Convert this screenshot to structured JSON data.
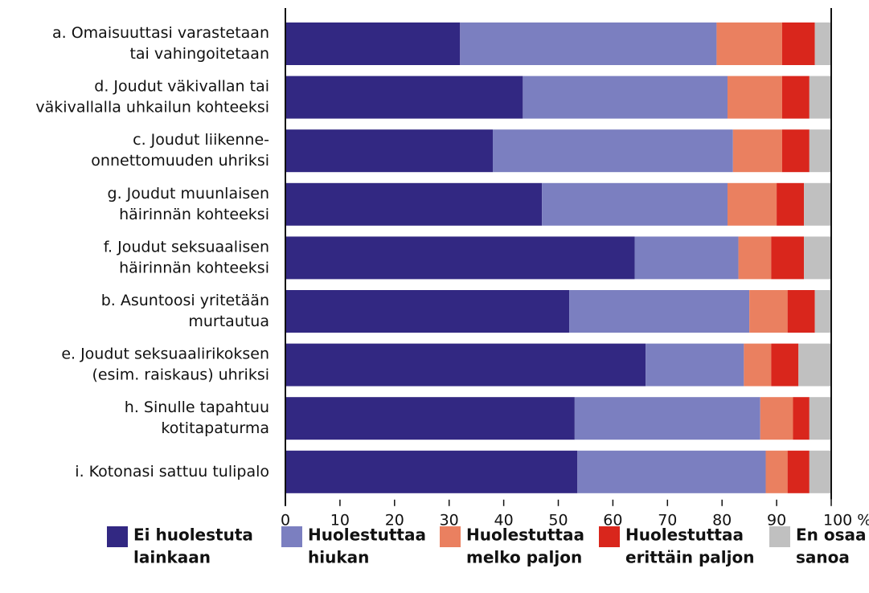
{
  "chart_data": {
    "type": "stacked-bar-horizontal",
    "categories": [
      [
        "a. Omaisuuttasi varastetaan",
        "tai vahingoitetaan"
      ],
      [
        "d. Joudut väkivallan tai",
        "väkivallalla uhkailun kohteeksi"
      ],
      [
        "c. Joudut liikenne-",
        "onnettomuuden uhriksi"
      ],
      [
        "g. Joudut muunlaisen",
        "häirinnän kohteeksi"
      ],
      [
        "f. Joudut seksuaalisen",
        "häirinnän kohteeksi"
      ],
      [
        "b. Asuntoosi yritetään",
        "murtautua"
      ],
      [
        "e. Joudut seksuaalirikoksen",
        "(esim. raiskaus) uhriksi"
      ],
      [
        "h. Sinulle tapahtuu",
        "kotitapaturma"
      ],
      [
        "i. Kotonasi sattuu tulipalo"
      ]
    ],
    "series": [
      {
        "name": [
          "Ei huolestuta",
          "lainkaan"
        ],
        "color": "#322882",
        "values": [
          32,
          43.5,
          38,
          47,
          64,
          52,
          66,
          53,
          53.5
        ]
      },
      {
        "name": [
          "Huolestuttaa",
          "hiukan"
        ],
        "color": "#7b7fc0",
        "values": [
          47,
          37.5,
          44,
          34,
          19,
          33,
          18,
          34,
          34.5
        ]
      },
      {
        "name": [
          "Huolestuttaa",
          "melko paljon"
        ],
        "color": "#ea8060",
        "values": [
          12,
          10,
          9,
          9,
          6,
          7,
          5,
          6,
          4
        ]
      },
      {
        "name": [
          "Huolestuttaa",
          "erittäin paljon"
        ],
        "color": "#d9261c",
        "values": [
          6,
          5,
          5,
          5,
          6,
          5,
          5,
          3,
          4
        ]
      },
      {
        "name": [
          "En osaa",
          "sanoa"
        ],
        "color": "#c0c0c0",
        "values": [
          3,
          4,
          4,
          5,
          5,
          3,
          6,
          4,
          4
        ]
      }
    ],
    "xlim": [
      0,
      100
    ],
    "xticks": [
      0,
      10,
      20,
      30,
      40,
      50,
      60,
      70,
      80,
      90,
      {
        "value": 100,
        "label": "100 %"
      }
    ]
  }
}
